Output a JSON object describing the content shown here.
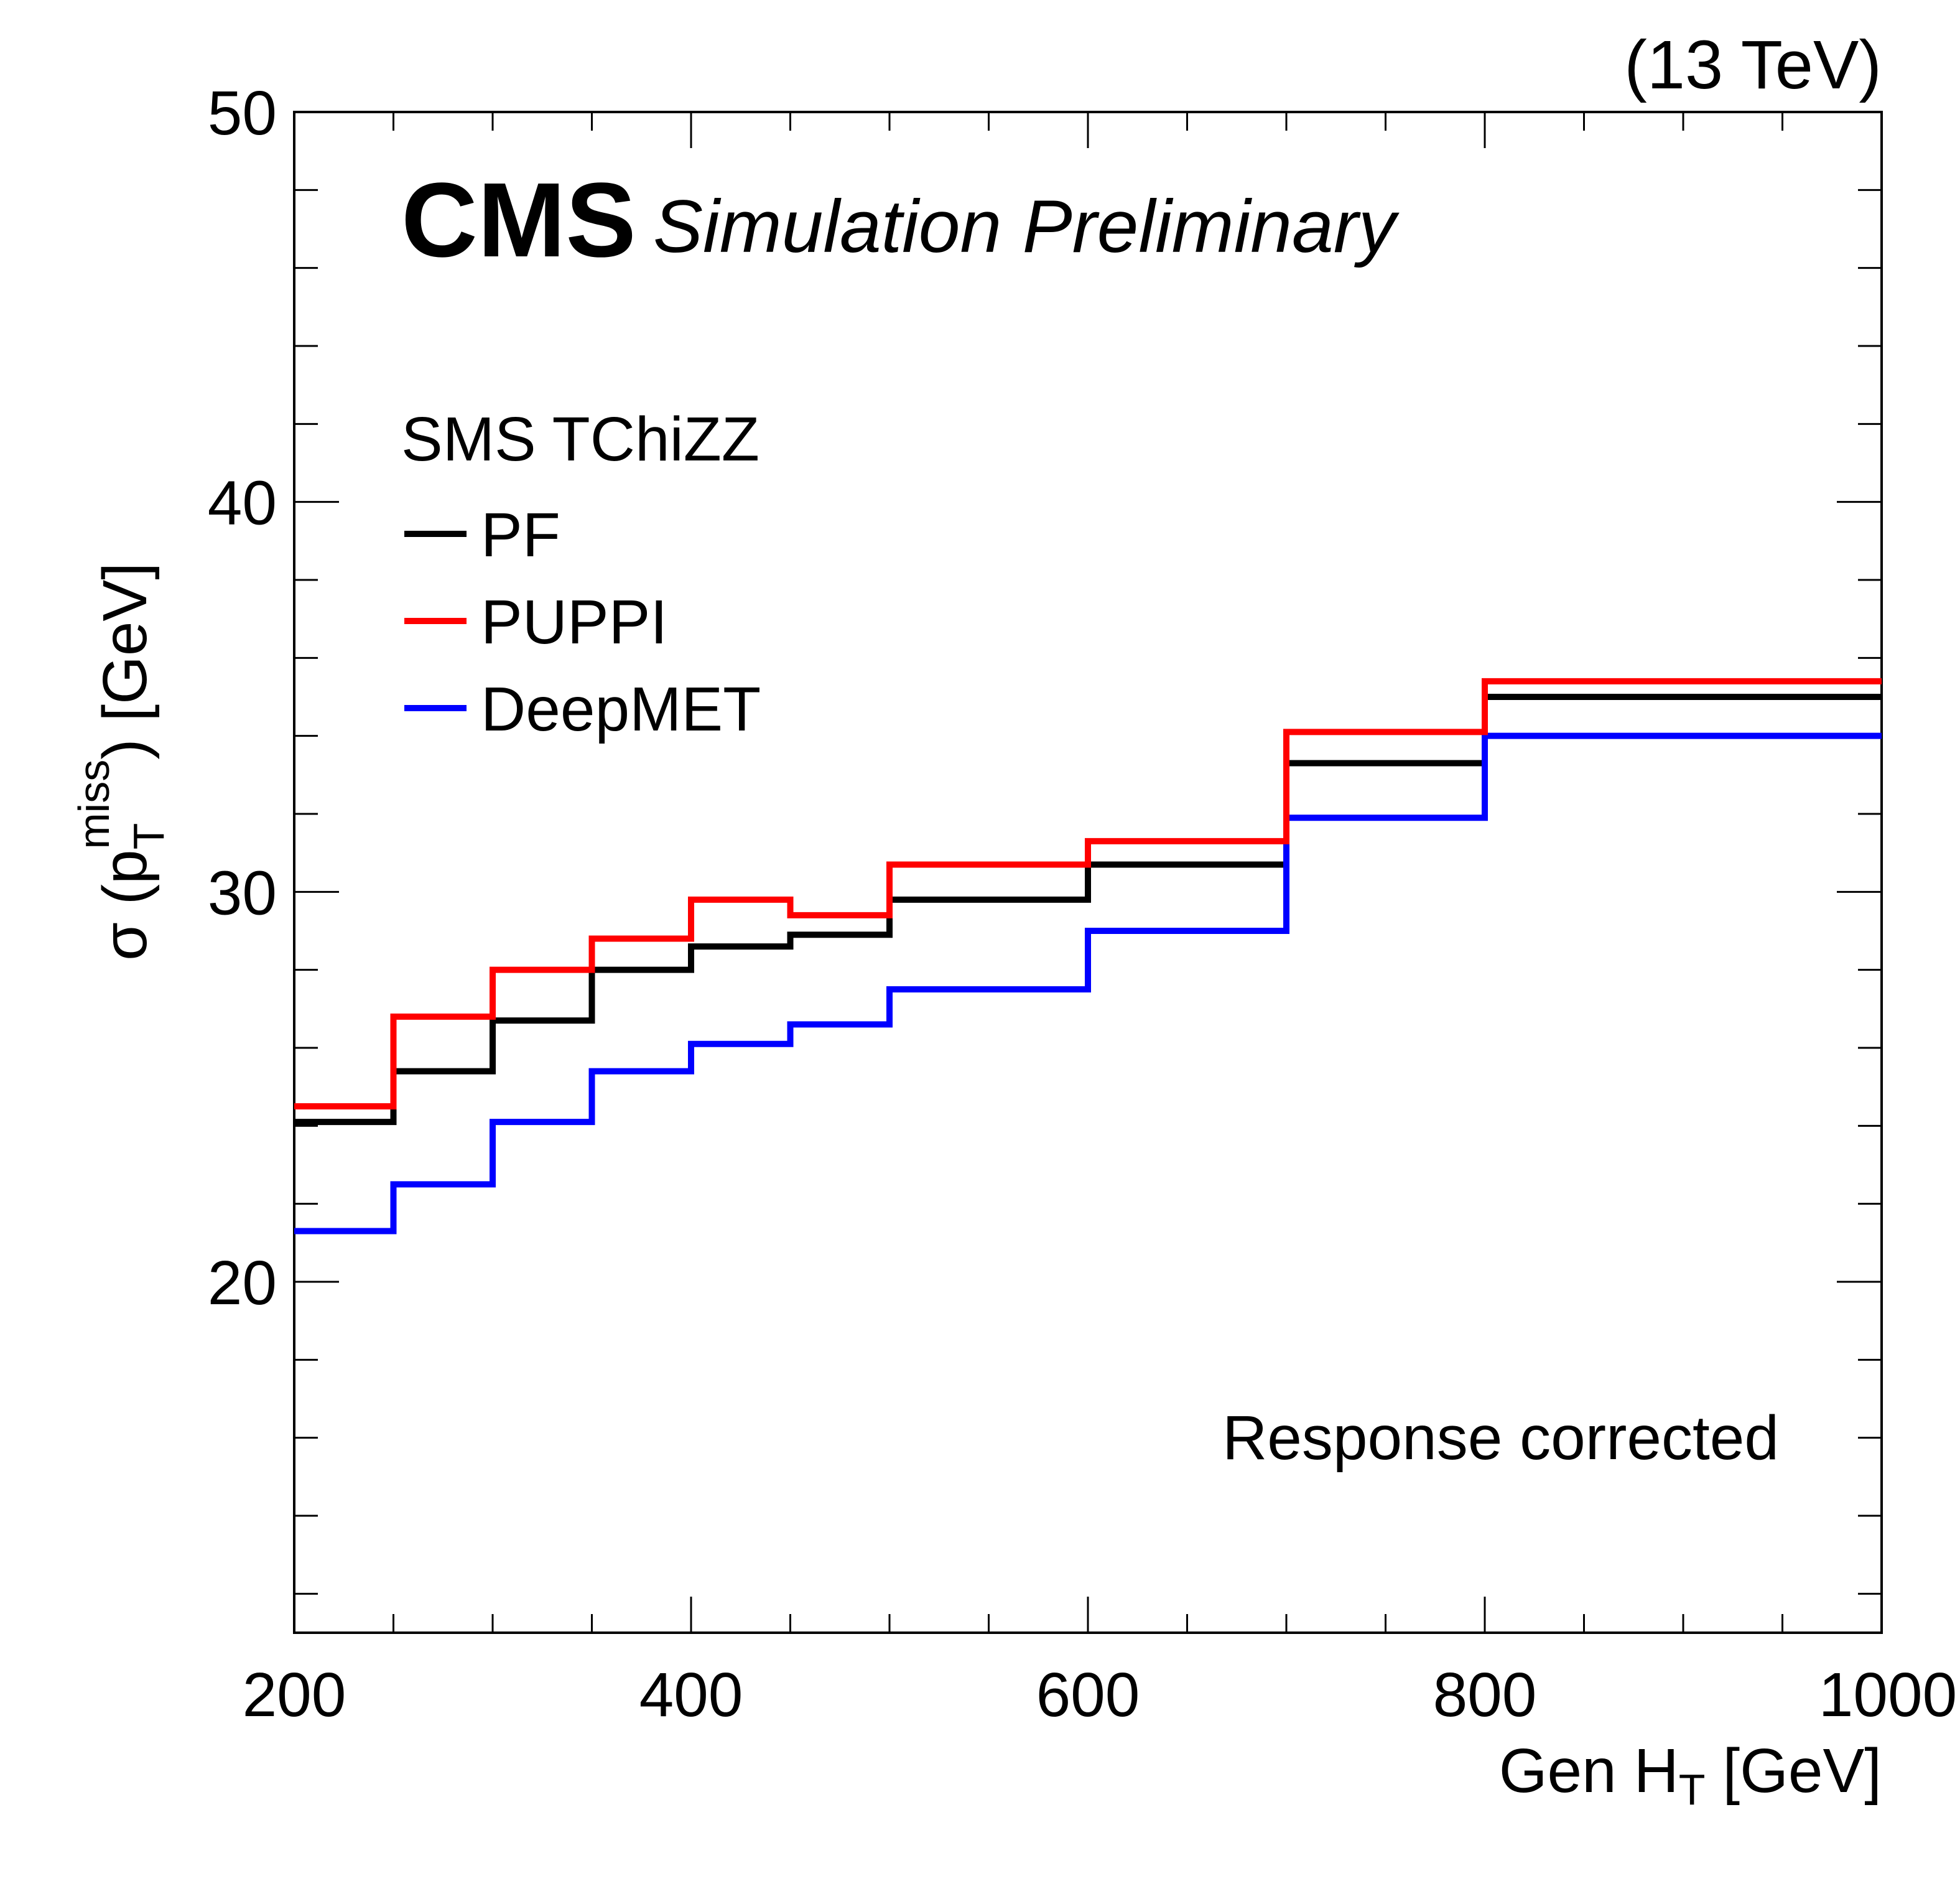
{
  "header": {
    "experiment": "CMS",
    "extra": "Simulation Preliminary",
    "energy": "(13 TeV)"
  },
  "annotation": "Response corrected",
  "chart_data": {
    "type": "line",
    "style": "step-histogram",
    "xlabel": "Gen H_T [GeV]",
    "ylabel": "σ (p_T^miss) [GeV]",
    "xlim": [
      200,
      1000
    ],
    "ylim": [
      11,
      50
    ],
    "x_ticks": [
      200,
      400,
      600,
      800,
      1000
    ],
    "y_ticks": [
      20,
      30,
      40,
      50
    ],
    "grid": false,
    "legend": {
      "title": "SMS TChiZZ",
      "placement": "top-left"
    },
    "bin_edges": [
      200,
      250,
      300,
      350,
      400,
      450,
      500,
      600,
      700,
      800,
      1000
    ],
    "series": [
      {
        "name": "PF",
        "color": "#000000",
        "values": [
          24.1,
          25.4,
          26.7,
          28.0,
          28.6,
          28.9,
          29.8,
          30.7,
          33.3,
          35.0
        ]
      },
      {
        "name": "PUPPI",
        "color": "#ff0000",
        "values": [
          24.5,
          26.8,
          28.0,
          28.8,
          29.8,
          29.4,
          30.7,
          31.3,
          34.1,
          35.4
        ]
      },
      {
        "name": "DeepMET",
        "color": "#0000ff",
        "values": [
          21.3,
          22.5,
          24.1,
          25.4,
          26.1,
          26.6,
          27.5,
          29.0,
          31.9,
          34.0
        ]
      }
    ]
  }
}
